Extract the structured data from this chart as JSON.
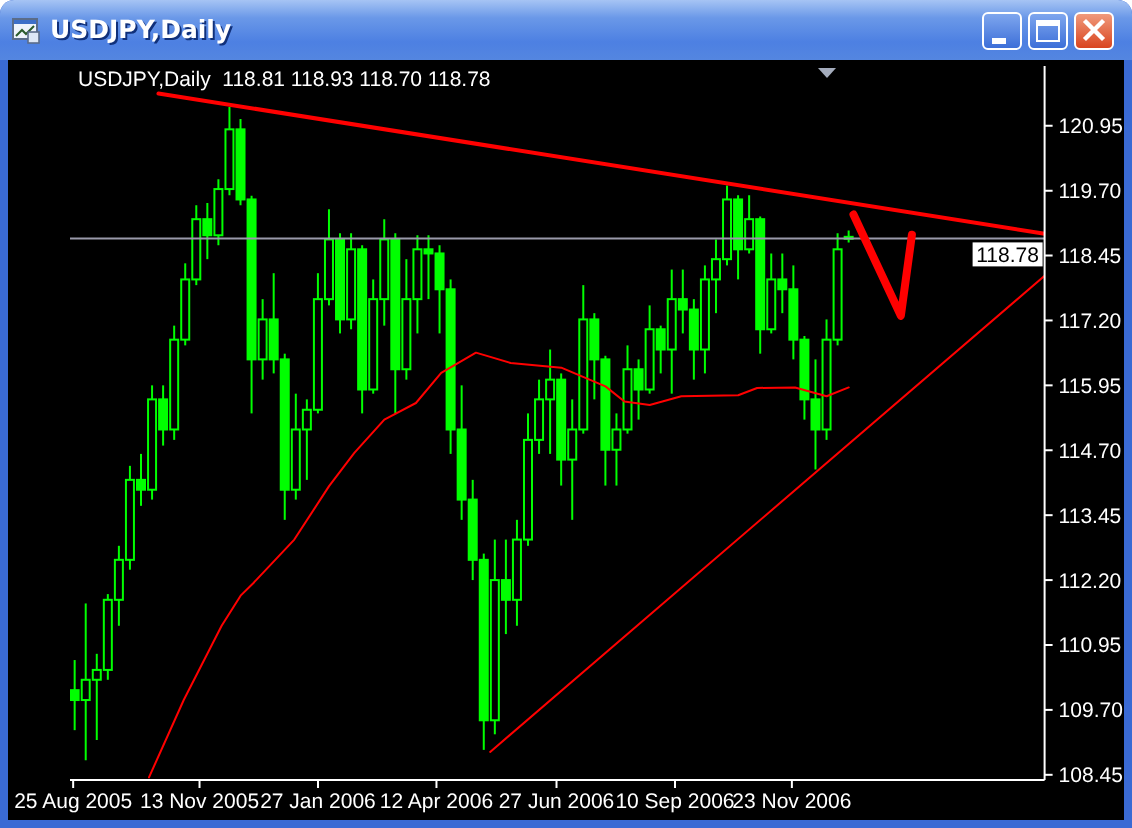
{
  "chart_data": {
    "type": "candlestick",
    "title": "USDJPY,Daily",
    "subtitle": "USDJPY,Daily  118.81 118.93 118.70 118.78",
    "color": "#00ff00",
    "x": [
      "2005-08-26",
      "2005-09-02",
      "2005-09-09",
      "2005-09-16",
      "2005-09-23",
      "2005-09-30",
      "2005-10-07",
      "2005-10-14",
      "2005-10-21",
      "2005-10-28",
      "2005-11-04",
      "2005-11-11",
      "2005-11-18",
      "2005-11-25",
      "2005-12-02",
      "2005-12-09",
      "2005-12-16",
      "2005-12-23",
      "2005-12-30",
      "2006-01-06",
      "2006-01-13",
      "2006-01-20",
      "2006-01-27",
      "2006-02-03",
      "2006-02-10",
      "2006-02-17",
      "2006-02-24",
      "2006-03-03",
      "2006-03-10",
      "2006-03-17",
      "2006-03-24",
      "2006-03-31",
      "2006-04-07",
      "2006-04-14",
      "2006-04-21",
      "2006-04-28",
      "2006-05-05",
      "2006-05-12",
      "2006-05-19",
      "2006-05-26",
      "2006-06-02",
      "2006-06-09",
      "2006-06-16",
      "2006-06-23",
      "2006-06-30",
      "2006-07-07",
      "2006-07-14",
      "2006-07-21",
      "2006-07-28",
      "2006-08-04",
      "2006-08-11",
      "2006-08-18",
      "2006-08-25",
      "2006-09-01",
      "2006-09-08",
      "2006-09-15",
      "2006-09-22",
      "2006-09-29",
      "2006-10-06",
      "2006-10-13",
      "2006-10-20",
      "2006-10-27",
      "2006-11-03",
      "2006-11-10",
      "2006-11-17",
      "2006-11-24",
      "2006-12-01",
      "2006-12-08",
      "2006-12-15",
      "2006-12-22",
      "2006-12-29"
    ],
    "ohlc": [
      [
        110.08,
        110.66,
        109.31,
        109.89
      ],
      [
        109.89,
        111.75,
        108.73,
        110.28
      ],
      [
        110.28,
        110.78,
        109.12,
        110.47
      ],
      [
        110.47,
        111.93,
        110.28,
        111.82
      ],
      [
        111.82,
        112.86,
        111.32,
        112.59
      ],
      [
        112.59,
        114.4,
        112.4,
        114.13
      ],
      [
        114.13,
        114.63,
        113.63,
        113.94
      ],
      [
        113.94,
        115.95,
        113.75,
        115.68
      ],
      [
        115.68,
        115.95,
        114.79,
        115.1
      ],
      [
        115.1,
        117.1,
        114.9,
        116.83
      ],
      [
        116.83,
        118.3,
        116.72,
        117.99
      ],
      [
        117.99,
        119.42,
        117.88,
        119.15
      ],
      [
        119.15,
        119.46,
        118.38,
        118.84
      ],
      [
        118.84,
        119.92,
        118.65,
        119.73
      ],
      [
        119.73,
        121.31,
        119.61,
        120.88
      ],
      [
        120.88,
        121.08,
        119.42,
        119.53
      ],
      [
        119.53,
        119.6,
        115.41,
        116.45
      ],
      [
        116.45,
        117.61,
        116.06,
        117.22
      ],
      [
        117.22,
        118.11,
        116.18,
        116.45
      ],
      [
        116.45,
        116.56,
        113.36,
        113.94
      ],
      [
        113.94,
        115.79,
        113.75,
        115.1
      ],
      [
        115.1,
        115.68,
        114.13,
        115.48
      ],
      [
        115.48,
        118.11,
        115.41,
        117.61
      ],
      [
        117.61,
        119.34,
        117.49,
        118.76
      ],
      [
        118.76,
        118.88,
        116.95,
        117.22
      ],
      [
        117.22,
        118.88,
        117.03,
        118.57
      ],
      [
        118.57,
        118.65,
        115.41,
        115.87
      ],
      [
        115.87,
        117.99,
        115.79,
        117.61
      ],
      [
        117.61,
        119.15,
        117.1,
        118.76
      ],
      [
        118.76,
        118.88,
        115.41,
        116.26
      ],
      [
        116.26,
        118.38,
        116.06,
        117.61
      ],
      [
        117.61,
        118.84,
        116.95,
        118.57
      ],
      [
        118.57,
        118.84,
        117.61,
        118.49
      ],
      [
        118.49,
        118.65,
        116.95,
        117.8
      ],
      [
        117.8,
        117.99,
        114.63,
        115.1
      ],
      [
        115.1,
        115.95,
        113.36,
        113.75
      ],
      [
        113.75,
        114.13,
        112.2,
        112.59
      ],
      [
        112.59,
        112.71,
        108.93,
        109.5
      ],
      [
        109.5,
        112.98,
        109.23,
        112.2
      ],
      [
        112.2,
        112.98,
        111.16,
        111.82
      ],
      [
        111.82,
        113.36,
        111.32,
        112.98
      ],
      [
        112.98,
        115.41,
        112.86,
        114.9
      ],
      [
        114.9,
        116.06,
        114.63,
        115.68
      ],
      [
        115.68,
        116.64,
        114.63,
        116.06
      ],
      [
        116.06,
        116.18,
        114.02,
        114.52
      ],
      [
        114.52,
        115.68,
        113.36,
        115.1
      ],
      [
        115.1,
        117.88,
        115.02,
        117.22
      ],
      [
        117.22,
        117.34,
        115.68,
        116.45
      ],
      [
        116.45,
        116.52,
        114.02,
        114.71
      ],
      [
        114.71,
        115.41,
        114.02,
        115.1
      ],
      [
        115.1,
        116.72,
        115.02,
        116.26
      ],
      [
        116.26,
        116.45,
        115.29,
        115.87
      ],
      [
        115.87,
        117.49,
        115.79,
        117.03
      ],
      [
        117.03,
        117.1,
        116.18,
        116.64
      ],
      [
        116.64,
        118.18,
        115.79,
        117.61
      ],
      [
        117.61,
        118.18,
        116.95,
        117.41
      ],
      [
        117.41,
        117.61,
        116.06,
        116.64
      ],
      [
        116.64,
        118.26,
        116.18,
        117.99
      ],
      [
        117.99,
        118.76,
        117.34,
        118.38
      ],
      [
        118.38,
        119.8,
        118.26,
        119.53
      ],
      [
        119.53,
        119.61,
        117.99,
        118.57
      ],
      [
        118.57,
        119.61,
        118.49,
        119.15
      ],
      [
        119.15,
        119.2,
        116.56,
        117.03
      ],
      [
        117.03,
        118.49,
        116.95,
        117.99
      ],
      [
        117.99,
        118.49,
        117.34,
        117.8
      ],
      [
        117.8,
        118.26,
        116.45,
        116.83
      ],
      [
        116.83,
        116.9,
        115.29,
        115.68
      ],
      [
        115.68,
        116.45,
        114.33,
        115.1
      ],
      [
        115.1,
        117.22,
        114.9,
        116.83
      ],
      [
        116.83,
        118.88,
        116.72,
        118.57
      ],
      [
        118.81,
        118.93,
        118.7,
        118.78
      ]
    ],
    "series": [
      {
        "type": "line",
        "color": "#ff0000",
        "x": [
          "2005-10-12",
          "2005-11-03",
          "2005-11-27",
          "2005-12-09",
          "2005-12-17",
          "2006-01-12",
          "2006-02-03",
          "2006-02-19",
          "2006-03-10",
          "2006-03-30",
          "2006-04-15",
          "2006-05-07",
          "2006-05-29",
          "2006-06-30",
          "2006-07-28",
          "2006-08-09",
          "2006-08-25",
          "2006-09-14",
          "2006-10-20",
          "2006-11-01",
          "2006-11-25",
          "2006-12-15",
          "2006-12-29"
        ],
        "values": [
          108.4,
          109.89,
          111.32,
          111.9,
          112.14,
          112.98,
          114.01,
          114.65,
          115.29,
          115.61,
          116.19,
          116.58,
          116.38,
          116.29,
          115.93,
          115.64,
          115.57,
          115.74,
          115.76,
          115.9,
          115.91,
          115.74,
          115.91
        ]
      },
      {
        "type": "line",
        "color": "#ff0000",
        "x": [
          "2005-10-18",
          "2007-05-02"
        ],
        "values": [
          121.57,
          118.87
        ]
      },
      {
        "type": "line",
        "color": "#ff0000",
        "x": [
          "2006-05-16",
          "2007-05-02"
        ],
        "values": [
          108.89,
          118.06
        ]
      },
      {
        "type": "line",
        "color": "#ff0000",
        "x": [
          "2007-01-01",
          "2007-01-31",
          "2007-02-07"
        ],
        "values": [
          119.24,
          117.29,
          118.85
        ]
      }
    ],
    "xlim": [
      "2005-08-23",
      "2007-05-02"
    ],
    "xticks": [
      {
        "value": "2005-08-25",
        "label": "25 Aug 2005"
      },
      {
        "value": "2005-11-13",
        "label": "13 Nov 2005"
      },
      {
        "value": "2006-01-27",
        "label": "27 Jan 2006"
      },
      {
        "value": "2006-04-12",
        "label": "12 Apr 2006"
      },
      {
        "value": "2006-06-27",
        "label": "27 Jun 2006"
      },
      {
        "value": "2006-09-10",
        "label": "10 Sep 2006"
      },
      {
        "value": "2006-11-23",
        "label": "23 Nov 2006"
      }
    ],
    "ylim": [
      108.35,
      122.1
    ],
    "yticks": [
      108.45,
      {
        "value": 109.7,
        "label": "109.70"
      },
      110.95,
      {
        "value": 112.2,
        "label": "112.20"
      },
      113.45,
      {
        "value": 114.7,
        "label": "114.70"
      },
      115.95,
      {
        "value": 117.2,
        "label": "117.20"
      },
      118.45,
      {
        "value": 119.7,
        "label": "119.70"
      },
      120.95
    ],
    "ref_lines": [
      {
        "axis": "y",
        "value": 118.78,
        "label": "118.78",
        "color": "#9a9aaa"
      }
    ]
  }
}
